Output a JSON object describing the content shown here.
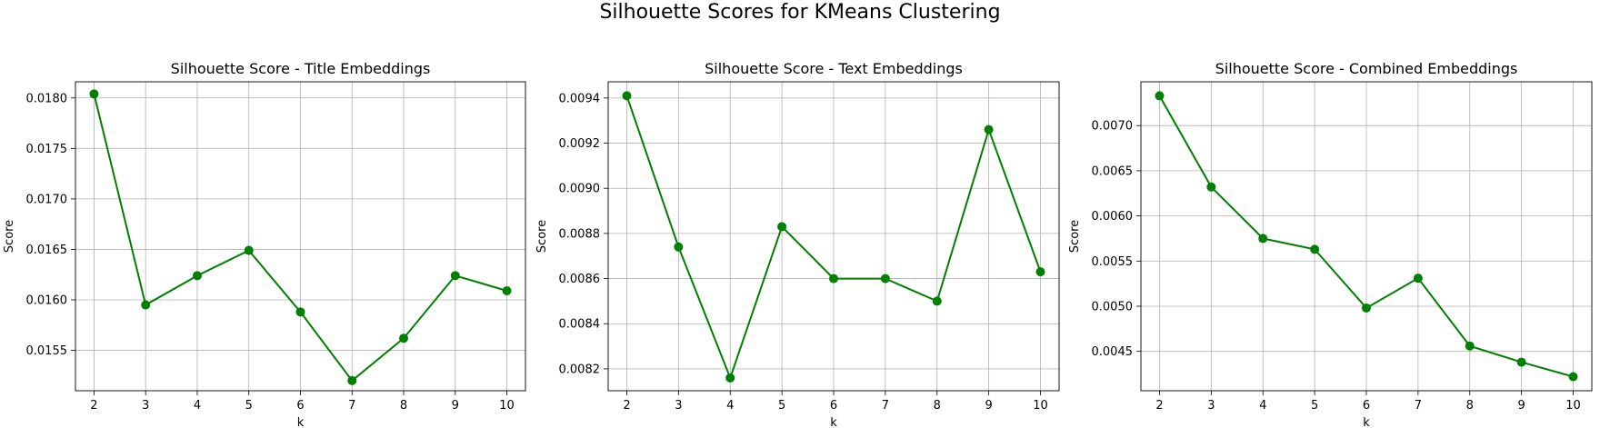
{
  "figure": {
    "suptitle": "Silhouette Scores for KMeans Clustering"
  },
  "chart_data": [
    {
      "type": "line",
      "title": "Silhouette Score - Title Embeddings",
      "xlabel": "k",
      "ylabel": "Score",
      "x": [
        2,
        3,
        4,
        5,
        6,
        7,
        8,
        9,
        10
      ],
      "values": [
        0.01804,
        0.01595,
        0.01624,
        0.01649,
        0.01588,
        0.0152,
        0.01562,
        0.01624,
        0.01609
      ],
      "xticks": [
        2,
        3,
        4,
        5,
        6,
        7,
        8,
        9,
        10
      ],
      "yticks": [
        0.0155,
        0.016,
        0.0165,
        0.017,
        0.0175,
        0.018
      ],
      "ytick_labels": [
        "0.0155",
        "0.0160",
        "0.0165",
        "0.0170",
        "0.0175",
        "0.0180"
      ],
      "xlim": [
        1.64,
        10.36
      ],
      "ylim": [
        0.0151,
        0.01816
      ],
      "grid": true,
      "color": "#008000",
      "marker": "circle"
    },
    {
      "type": "line",
      "title": "Silhouette Score - Text Embeddings",
      "xlabel": "k",
      "ylabel": "Score",
      "x": [
        2,
        3,
        4,
        5,
        6,
        7,
        8,
        9,
        10
      ],
      "values": [
        0.00941,
        0.00874,
        0.00816,
        0.00883,
        0.0086,
        0.0086,
        0.0085,
        0.00926,
        0.00863
      ],
      "xticks": [
        2,
        3,
        4,
        5,
        6,
        7,
        8,
        9,
        10
      ],
      "yticks": [
        0.0082,
        0.0084,
        0.0086,
        0.0088,
        0.009,
        0.0092,
        0.0094
      ],
      "ytick_labels": [
        "0.0082",
        "0.0084",
        "0.0086",
        "0.0088",
        "0.0090",
        "0.0092",
        "0.0094"
      ],
      "xlim": [
        1.64,
        10.36
      ],
      "ylim": [
        0.008103,
        0.009472
      ],
      "grid": true,
      "color": "#008000",
      "marker": "circle"
    },
    {
      "type": "line",
      "title": "Silhouette Score - Combined Embeddings",
      "xlabel": "k",
      "ylabel": "Score",
      "x": [
        2,
        3,
        4,
        5,
        6,
        7,
        8,
        9,
        10
      ],
      "values": [
        0.00733,
        0.00632,
        0.00575,
        0.00563,
        0.00498,
        0.00531,
        0.00456,
        0.00438,
        0.00422
      ],
      "xticks": [
        2,
        3,
        4,
        5,
        6,
        7,
        8,
        9,
        10
      ],
      "yticks": [
        0.0045,
        0.005,
        0.0055,
        0.006,
        0.0065,
        0.007
      ],
      "ytick_labels": [
        "0.0045",
        "0.0050",
        "0.0055",
        "0.0060",
        "0.0065",
        "0.0070"
      ],
      "xlim": [
        1.64,
        10.36
      ],
      "ylim": [
        0.004064,
        0.007485
      ],
      "grid": true,
      "color": "#008000",
      "marker": "circle"
    }
  ]
}
